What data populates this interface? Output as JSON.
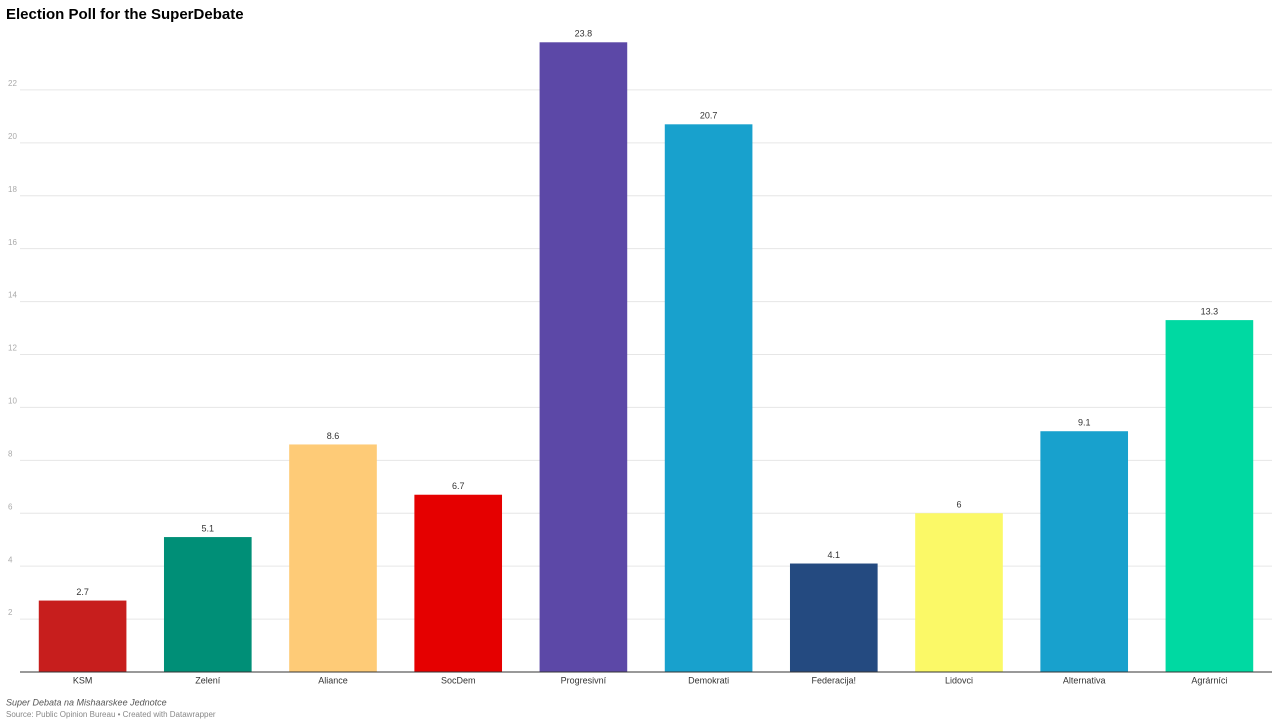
{
  "chart_data": {
    "type": "bar",
    "title": "Election Poll for the SuperDebate",
    "categories": [
      "KSM",
      "Zelení",
      "Aliance",
      "SocDem",
      "Progresivní",
      "Demokrati",
      "Federacija!",
      "Lidovci",
      "Alternativa",
      "Agrárníci"
    ],
    "values": [
      2.7,
      5.1,
      8.6,
      6.7,
      23.8,
      20.7,
      4.1,
      6,
      9.1,
      13.3
    ],
    "colors": [
      "#c71e1d",
      "#008f77",
      "#fecb77",
      "#e50000",
      "#5c48a7",
      "#18a1cd",
      "#244a80",
      "#fbf967",
      "#18a1cd",
      "#00d9a2"
    ],
    "ylim": [
      0,
      24
    ],
    "yticks": [
      2,
      4,
      6,
      8,
      10,
      12,
      14,
      16,
      18,
      20,
      22
    ],
    "grid": true,
    "notes": "Super Debata na Mishaarskee Jednotce",
    "source": "Source: Public Opinion Bureau • Created with Datawrapper"
  }
}
